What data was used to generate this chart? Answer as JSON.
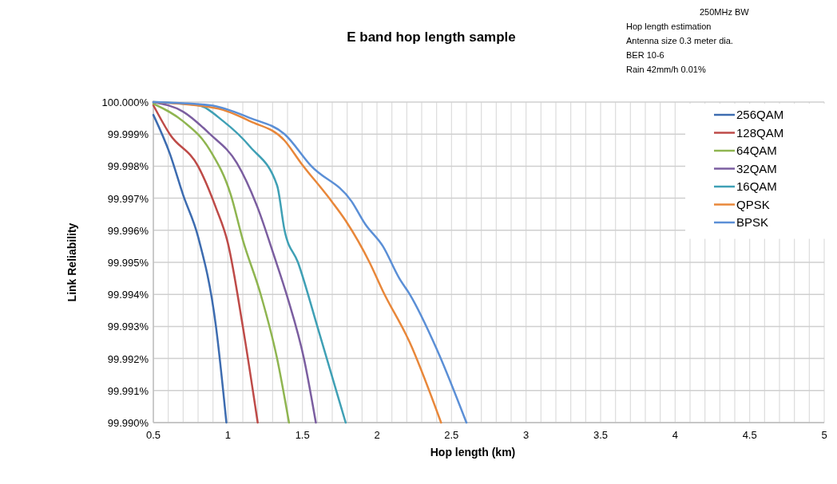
{
  "chart_data": {
    "type": "line",
    "title": "E band hop length sample",
    "xlabel": "Hop length (km)",
    "ylabel": "Link Reliability",
    "annotations": [
      "250MHz BW",
      "Hop length estimation",
      "Antenna size 0.3 meter dia.",
      "BER 10-6",
      "Rain 42mm/h 0.01%"
    ],
    "xlim": [
      0.5,
      5
    ],
    "ylim": [
      99.99,
      100
    ],
    "xticks": [
      0.5,
      {
        "value": 0.6,
        "label": null
      },
      {
        "value": 0.7,
        "label": null
      },
      {
        "value": 0.8,
        "label": null
      },
      {
        "value": 0.9,
        "label": null
      },
      1,
      {
        "value": 1.1,
        "label": null
      },
      {
        "value": 1.2,
        "label": null
      },
      {
        "value": 1.3,
        "label": null
      },
      {
        "value": 1.4,
        "label": null
      },
      1.5,
      {
        "value": 1.6,
        "label": null
      },
      {
        "value": 1.7,
        "label": null
      },
      {
        "value": 1.8,
        "label": null
      },
      {
        "value": 1.9,
        "label": null
      },
      2,
      {
        "value": 2.1,
        "label": null
      },
      {
        "value": 2.2,
        "label": null
      },
      {
        "value": 2.3,
        "label": null
      },
      {
        "value": 2.4,
        "label": null
      },
      2.5,
      {
        "value": 2.6,
        "label": null
      },
      {
        "value": 2.7,
        "label": null
      },
      {
        "value": 2.8,
        "label": null
      },
      {
        "value": 2.9,
        "label": null
      },
      3,
      {
        "value": 3.1,
        "label": null
      },
      {
        "value": 3.2,
        "label": null
      },
      {
        "value": 3.3,
        "label": null
      },
      {
        "value": 3.4,
        "label": null
      },
      3.5,
      {
        "value": 3.6,
        "label": null
      },
      {
        "value": 3.7,
        "label": null
      },
      {
        "value": 3.8,
        "label": null
      },
      {
        "value": 3.9,
        "label": null
      },
      4,
      {
        "value": 4.1,
        "label": null
      },
      {
        "value": 4.2,
        "label": null
      },
      {
        "value": 4.3,
        "label": null
      },
      {
        "value": 4.4,
        "label": null
      },
      4.5,
      {
        "value": 4.6,
        "label": null
      },
      {
        "value": 4.7,
        "label": null
      },
      {
        "value": 4.8,
        "label": null
      },
      {
        "value": 4.9,
        "label": null
      },
      5
    ],
    "yticks": [
      {
        "value": 99.99,
        "label": "99.990%"
      },
      {
        "value": 99.991,
        "label": "99.991%"
      },
      {
        "value": 99.992,
        "label": "99.992%"
      },
      {
        "value": 99.993,
        "label": "99.993%"
      },
      {
        "value": 99.994,
        "label": "99.994%"
      },
      {
        "value": 99.995,
        "label": "99.995%"
      },
      {
        "value": 99.996,
        "label": "99.996%"
      },
      {
        "value": 99.997,
        "label": "99.997%"
      },
      {
        "value": 99.998,
        "label": "99.998%"
      },
      {
        "value": 99.999,
        "label": "99.999%"
      },
      {
        "value": 100,
        "label": "100.000%"
      }
    ],
    "grid": true,
    "legend": "top right",
    "marker": "none",
    "line_style": "solid",
    "series": [
      {
        "name": "256QAM",
        "color": "#3d6cb0",
        "x": [
          0.5,
          0.61,
          0.7,
          0.8,
          0.92,
          0.99
        ],
        "values": [
          99.9996,
          99.9984,
          99.9971,
          99.9958,
          99.993,
          99.99
        ]
      },
      {
        "name": "128QAM",
        "color": "#be4b48",
        "x": [
          0.5,
          0.61,
          0.8,
          0.92,
          1.0,
          1.1,
          1.2
        ],
        "values": [
          99.9999,
          99.999,
          99.998,
          99.9967,
          99.9956,
          99.993,
          99.99
        ]
      },
      {
        "name": "64QAM",
        "color": "#8fb550",
        "x": [
          0.5,
          0.7,
          0.88,
          1.02,
          1.1,
          1.22,
          1.33,
          1.41
        ],
        "values": [
          99.99995,
          99.9994,
          99.9985,
          99.9971,
          99.9957,
          99.994,
          99.992,
          99.99
        ]
      },
      {
        "name": "32QAM",
        "color": "#7b5ea0",
        "x": [
          0.5,
          0.7,
          0.88,
          1.06,
          1.2,
          1.31,
          1.4,
          1.51,
          1.59
        ],
        "values": [
          100,
          99.9997,
          99.999,
          99.9981,
          99.9967,
          99.9952,
          99.9939,
          99.992,
          99.99
        ]
      },
      {
        "name": "16QAM",
        "color": "#3fa0b5",
        "x": [
          0.5,
          0.8,
          0.97,
          1.15,
          1.33,
          1.38,
          1.47,
          1.6,
          1.79
        ],
        "values": [
          100,
          99.9999,
          99.9994,
          99.9986,
          99.9974,
          99.996,
          99.995,
          99.993,
          99.99
        ]
      },
      {
        "name": "QPSK",
        "color": "#e8873a",
        "x": [
          0.5,
          0.93,
          1.15,
          1.38,
          1.49,
          1.68,
          1.79,
          1.95,
          2.04,
          2.22,
          2.43
        ],
        "values": [
          100,
          99.9998,
          99.9994,
          99.9988,
          99.9981,
          99.997,
          99.9963,
          99.995,
          99.9941,
          99.9925,
          99.99
        ]
      },
      {
        "name": "BPSK",
        "color": "#5b8fd6",
        "x": [
          0.5,
          0.88,
          1.15,
          1.38,
          1.56,
          1.83,
          1.92,
          2.04,
          2.15,
          2.22,
          2.4,
          2.6
        ],
        "values": [
          100,
          99.9999,
          99.9995,
          99.999,
          99.998,
          99.9969,
          99.9962,
          99.9955,
          99.9945,
          99.994,
          99.9923,
          99.99
        ]
      }
    ]
  }
}
